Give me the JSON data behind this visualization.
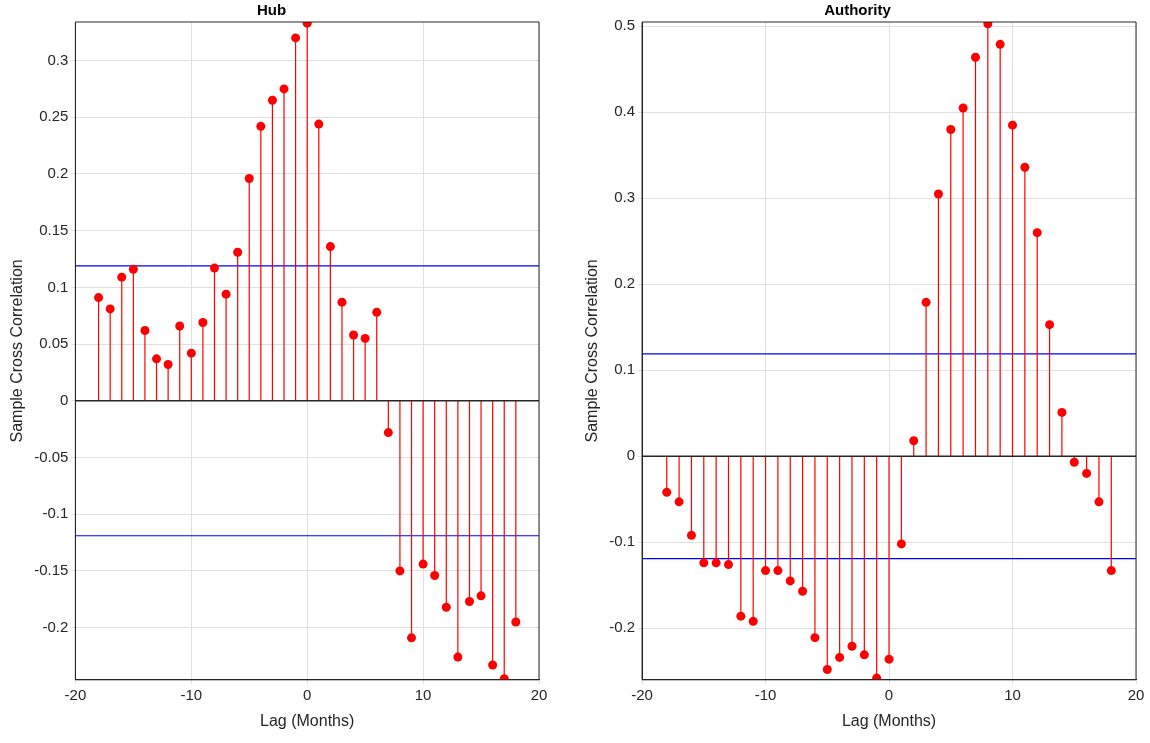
{
  "chart_data": [
    {
      "type": "lollipop",
      "title": "Hub",
      "xlabel": "Lag (Months)",
      "ylabel": "Sample Cross Correlation",
      "x": [
        -18,
        -17,
        -16,
        -15,
        -14,
        -13,
        -12,
        -11,
        -10,
        -9,
        -8,
        -7,
        -6,
        -5,
        -4,
        -3,
        -2,
        -1,
        0,
        1,
        2,
        3,
        4,
        5,
        6,
        7,
        8,
        9,
        10,
        11,
        12,
        13,
        14,
        15,
        16,
        17,
        18
      ],
      "series": [
        {
          "color": "#ff0000",
          "values": [
            0.091,
            0.081,
            0.109,
            0.116,
            0.062,
            0.037,
            0.032,
            0.066,
            0.042,
            0.069,
            0.117,
            0.094,
            0.131,
            0.196,
            0.242,
            0.265,
            0.275,
            0.32,
            0.333,
            0.244,
            0.136,
            0.087,
            0.058,
            0.055,
            0.078,
            -0.028,
            -0.15,
            -0.209,
            -0.144,
            -0.154,
            -0.182,
            -0.226,
            -0.177,
            -0.172,
            -0.233,
            -0.245,
            -0.195
          ]
        }
      ],
      "xlim": [
        -20,
        20
      ],
      "xticks": [
        -20,
        -10,
        0,
        10,
        20
      ],
      "ylim": [
        -0.246,
        0.334
      ],
      "yticks": [
        -0.2,
        -0.15,
        -0.1,
        -0.05,
        0,
        0.05,
        0.1,
        0.15,
        0.2,
        0.25,
        0.3
      ],
      "ref_lines": [
        {
          "axis": "y",
          "value": 0.119,
          "color": "#0000ff"
        },
        {
          "axis": "y",
          "value": -0.119,
          "color": "#0000ff"
        }
      ],
      "grid": true,
      "marker": "circle",
      "legend": false
    },
    {
      "type": "lollipop",
      "title": "Authority",
      "xlabel": "Lag (Months)",
      "ylabel": "Sample Cross Correlation",
      "x": [
        -18,
        -17,
        -16,
        -15,
        -14,
        -13,
        -12,
        -11,
        -10,
        -9,
        -8,
        -7,
        -6,
        -5,
        -4,
        -3,
        -2,
        -1,
        0,
        1,
        2,
        3,
        4,
        5,
        6,
        7,
        8,
        9,
        10,
        11,
        12,
        13,
        14,
        15,
        16,
        17,
        18
      ],
      "series": [
        {
          "color": "#ff0000",
          "values": [
            -0.042,
            -0.053,
            -0.092,
            -0.124,
            -0.124,
            -0.126,
            -0.186,
            -0.192,
            -0.133,
            -0.133,
            -0.145,
            -0.157,
            -0.211,
            -0.248,
            -0.234,
            -0.221,
            -0.231,
            -0.258,
            -0.236,
            -0.102,
            0.018,
            0.179,
            0.305,
            0.38,
            0.405,
            0.464,
            0.503,
            0.479,
            0.385,
            0.336,
            0.26,
            0.153,
            0.051,
            -0.007,
            -0.02,
            -0.053,
            -0.133
          ]
        }
      ],
      "xlim": [
        -20,
        20
      ],
      "xticks": [
        -20,
        -10,
        0,
        10,
        20
      ],
      "ylim": [
        -0.26,
        0.505
      ],
      "yticks": [
        -0.2,
        -0.1,
        0,
        0.1,
        0.2,
        0.3,
        0.4,
        0.5
      ],
      "ref_lines": [
        {
          "axis": "y",
          "value": 0.119,
          "color": "#0000ff"
        },
        {
          "axis": "y",
          "value": -0.119,
          "color": "#0000ff"
        }
      ],
      "grid": true,
      "marker": "circle",
      "legend": false
    }
  ]
}
